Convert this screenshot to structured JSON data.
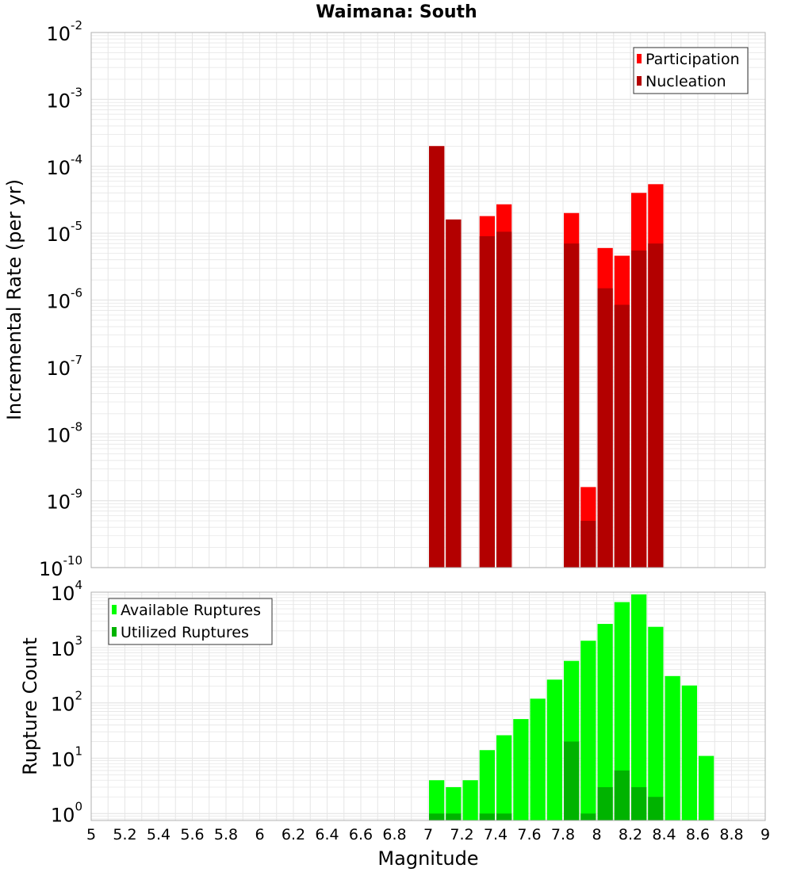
{
  "title": "Waimana: South",
  "xlabel": "Magnitude",
  "x_ticks": [
    "5",
    "5.2",
    "5.4",
    "5.6",
    "5.8",
    "6",
    "6.2",
    "6.4",
    "6.6",
    "6.8",
    "7",
    "7.2",
    "7.4",
    "7.6",
    "7.8",
    "8",
    "8.2",
    "8.4",
    "8.6",
    "8.8",
    "9"
  ],
  "colors": {
    "participation": "#ff0000",
    "nucleation": "#b30000",
    "available": "#00ff00",
    "utilized": "#00b300",
    "grid": "#e6e6e6",
    "frame": "#b0b0b0"
  },
  "chart_data": [
    {
      "type": "bar",
      "name": "rate-panel",
      "ylabel": "Incremental Rate (per yr)",
      "yscale": "log",
      "ylim": [
        1e-10,
        0.01
      ],
      "xlim": [
        5,
        9
      ],
      "y_tick_base": "10",
      "y_tick_exponents": [
        "-10",
        "-9",
        "-8",
        "-7",
        "-6",
        "-5",
        "-4",
        "-3",
        "-2"
      ],
      "legend": [
        "Participation",
        "Nucleation"
      ],
      "legend_position": "top-right",
      "series": [
        {
          "name": "Participation",
          "x": [
            7.05,
            7.15,
            7.35,
            7.45,
            7.85,
            7.95,
            8.05,
            8.15,
            8.25,
            8.35
          ],
          "values": [
            0.0002,
            1.6e-05,
            1.8e-05,
            2.7e-05,
            2e-05,
            1.6e-09,
            6e-06,
            4.6e-06,
            4e-05,
            5.4e-05
          ]
        },
        {
          "name": "Nucleation",
          "x": [
            7.05,
            7.15,
            7.35,
            7.45,
            7.85,
            7.95,
            8.05,
            8.15,
            8.25,
            8.35
          ],
          "values": [
            0.0002,
            1.6e-05,
            9e-06,
            1.05e-05,
            7e-06,
            5e-10,
            1.5e-06,
            8.5e-07,
            5.5e-06,
            7e-06
          ]
        }
      ]
    },
    {
      "type": "bar",
      "name": "count-panel",
      "ylabel": "Rupture Count",
      "yscale": "log",
      "ylim": [
        0.75,
        10000
      ],
      "xlim": [
        5,
        9
      ],
      "y_tick_base": "10",
      "y_tick_exponents": [
        "0",
        "1",
        "2",
        "3",
        "4"
      ],
      "legend": [
        "Available Ruptures",
        "Utilized Ruptures"
      ],
      "legend_position": "top-left",
      "series": [
        {
          "name": "Available Ruptures",
          "x": [
            7.05,
            7.15,
            7.25,
            7.35,
            7.45,
            7.55,
            7.65,
            7.75,
            7.85,
            7.95,
            8.05,
            8.15,
            8.25,
            8.35,
            8.45,
            8.55,
            8.65
          ],
          "values": [
            4,
            3,
            4,
            14,
            26,
            51,
            119,
            263,
            573,
            1326,
            2669,
            6615,
            9134,
            2366,
            305,
            206,
            11
          ]
        },
        {
          "name": "Utilized Ruptures",
          "x": [
            7.05,
            7.15,
            7.35,
            7.45,
            7.85,
            7.95,
            8.05,
            8.15,
            8.25,
            8.35
          ],
          "values": [
            1,
            1,
            1,
            1,
            20,
            1,
            3,
            6,
            3,
            2
          ]
        }
      ]
    }
  ]
}
